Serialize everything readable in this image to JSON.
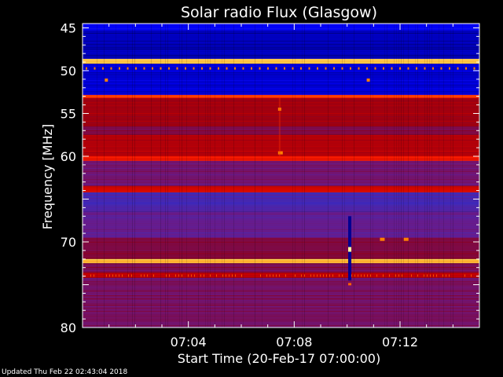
{
  "chart_data": {
    "type": "heatmap",
    "title": "Solar radio Flux (Glasgow)",
    "xlabel": "Start Time (20-Feb-17 07:00:00)",
    "ylabel": "Frequency [MHz]",
    "x_ticks": [
      "07:04",
      "07:08",
      "07:12"
    ],
    "x_tick_minutes": [
      4,
      8,
      12
    ],
    "xlim_minutes": [
      0,
      15
    ],
    "y_ticks": [
      45,
      50,
      55,
      60,
      65,
      70,
      75,
      80
    ],
    "y_tick_labels": [
      "45",
      "50",
      "55",
      "60",
      "",
      "70",
      "",
      "80"
    ],
    "ylim": [
      44.5,
      80
    ],
    "y_inverted": true,
    "colormap": [
      "#000080",
      "#0000ff",
      "#3030c8",
      "#6a1a8a",
      "#8c0018",
      "#c80000",
      "#ff2000",
      "#ff8000",
      "#ffff80"
    ],
    "bands": [
      {
        "f0": 44.5,
        "f1": 45.3,
        "level": 0.12
      },
      {
        "f0": 45.3,
        "f1": 48.6,
        "level": 0.05
      },
      {
        "f0": 48.6,
        "f1": 49.2,
        "level": 0.95
      },
      {
        "f0": 49.2,
        "f1": 52.8,
        "level": 0.08
      },
      {
        "f0": 52.8,
        "f1": 53.2,
        "level": 0.78
      },
      {
        "f0": 53.2,
        "f1": 56.5,
        "level": 0.55
      },
      {
        "f0": 56.5,
        "f1": 57.5,
        "level": 0.45
      },
      {
        "f0": 57.5,
        "f1": 60.0,
        "level": 0.58
      },
      {
        "f0": 60.0,
        "f1": 60.5,
        "level": 0.72
      },
      {
        "f0": 60.5,
        "f1": 63.5,
        "level": 0.4
      },
      {
        "f0": 63.5,
        "f1": 64.2,
        "level": 0.66
      },
      {
        "f0": 64.2,
        "f1": 66.5,
        "level": 0.3
      },
      {
        "f0": 66.5,
        "f1": 69.5,
        "level": 0.36
      },
      {
        "f0": 69.5,
        "f1": 72.0,
        "level": 0.46
      },
      {
        "f0": 72.0,
        "f1": 72.5,
        "level": 0.93
      },
      {
        "f0": 72.5,
        "f1": 73.6,
        "level": 0.44
      },
      {
        "f0": 73.6,
        "f1": 74.2,
        "level": 0.62
      },
      {
        "f0": 74.2,
        "f1": 80.0,
        "level": 0.42
      }
    ],
    "features": [
      {
        "kind": "burst",
        "t": 10.1,
        "f0": 67.0,
        "f1": 74.5
      },
      {
        "kind": "spot",
        "t": 7.45,
        "f": 59.6
      },
      {
        "kind": "spot",
        "t": 7.45,
        "f": 54.5
      },
      {
        "kind": "spot",
        "t": 0.9,
        "f": 51.1
      },
      {
        "kind": "spot",
        "t": 10.8,
        "f": 51.1
      },
      {
        "kind": "spot",
        "t": 11.3,
        "f": 69.7
      },
      {
        "kind": "spot",
        "t": 12.2,
        "f": 69.7
      }
    ]
  },
  "footer": "Updated Thu Feb 22 02:43:04 2018"
}
